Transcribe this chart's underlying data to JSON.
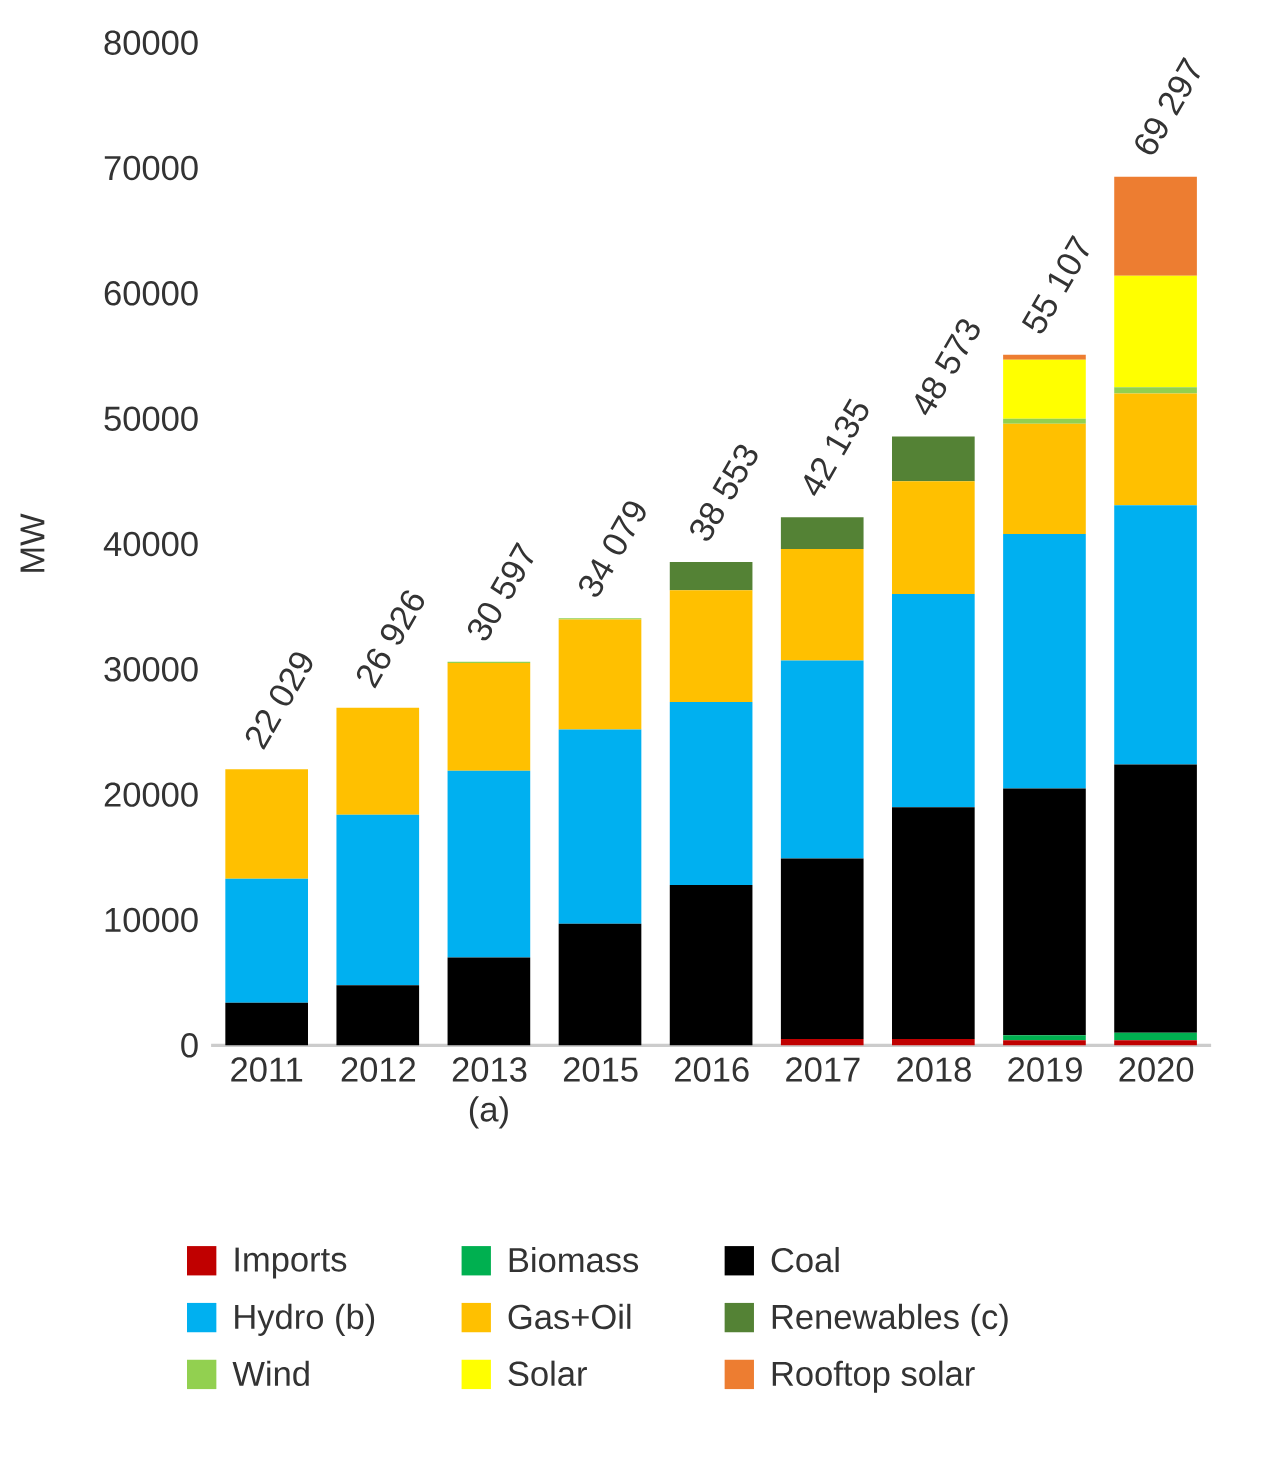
{
  "chart_data": {
    "type": "bar",
    "stacked": true,
    "ylabel": "MW",
    "categories": [
      "2011",
      "2012",
      "2013 (a)",
      "2015",
      "2016",
      "2017",
      "2018",
      "2019",
      "2020"
    ],
    "series": [
      {
        "name": "Imports",
        "color": "#c00000",
        "values": [
          0,
          0,
          0,
          0,
          0,
          500,
          500,
          400,
          400
        ]
      },
      {
        "name": "Biomass",
        "color": "#00b050",
        "values": [
          0,
          0,
          0,
          0,
          0,
          0,
          0,
          400,
          600
        ]
      },
      {
        "name": "Coal",
        "color": "#000000",
        "values": [
          3400,
          4800,
          7000,
          9700,
          12800,
          14400,
          18500,
          19700,
          21400
        ]
      },
      {
        "name": "Hydro (b)",
        "color": "#00b0f0",
        "values": [
          9900,
          13600,
          14900,
          15500,
          14600,
          15800,
          17000,
          20300,
          20700
        ]
      },
      {
        "name": "Gas+Oil",
        "color": "#ffc000",
        "values": [
          8729,
          8526,
          8597,
          8779,
          8900,
          8900,
          9000,
          8800,
          8900
        ]
      },
      {
        "name": "Renewables (c)",
        "color": "#548235",
        "values": [
          0,
          0,
          0,
          0,
          2253,
          2535,
          3573,
          0,
          0
        ]
      },
      {
        "name": "Wind",
        "color": "#92d050",
        "values": [
          0,
          0,
          100,
          100,
          0,
          0,
          0,
          400,
          500
        ]
      },
      {
        "name": "Solar",
        "color": "#ffff00",
        "values": [
          0,
          0,
          0,
          0,
          0,
          0,
          0,
          4700,
          8900
        ]
      },
      {
        "name": "Rooftop solar",
        "color": "#ed7d31",
        "values": [
          0,
          0,
          0,
          0,
          0,
          0,
          0,
          407,
          7897
        ]
      }
    ],
    "totals": [
      "22 029",
      "26 926",
      "30 597",
      "34 079",
      "38 553",
      "42 135",
      "48 573",
      "55 107",
      "69 297"
    ],
    "ylim": [
      0,
      80000
    ],
    "yticks": [
      0,
      10000,
      20000,
      30000,
      40000,
      50000,
      60000,
      70000,
      80000
    ],
    "legend": "bottom"
  }
}
